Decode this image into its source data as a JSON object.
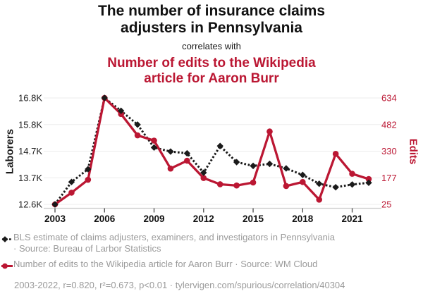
{
  "header": {
    "title_top": "The number of insurance claims adjusters in Pennsylvania",
    "connector": "correlates with",
    "title_bottom": "Number of edits to the Wikipedia article for Aaron Burr"
  },
  "colors": {
    "accent_red": "#bb1733",
    "series_black": "#1a1a1a",
    "legend_gray": "#9b9b9b",
    "gridline": "#ededed",
    "axis_line": "#cccccc",
    "tick_mark": "#555555"
  },
  "chart_data": {
    "type": "line",
    "title": "The number of insurance claims adjusters in Pennsylvania correlates with Number of edits to the Wikipedia article for Aaron Burr",
    "x": [
      2003,
      2004,
      2005,
      2006,
      2007,
      2008,
      2009,
      2010,
      2011,
      2012,
      2013,
      2014,
      2015,
      2016,
      2017,
      2018,
      2019,
      2020,
      2021,
      2022
    ],
    "x_range": [
      2003,
      2022
    ],
    "x_label_ticks": [
      2003,
      2006,
      2009,
      2012,
      2015,
      2018,
      2021
    ],
    "grid": "horizontal-only",
    "legend_position": "bottom-left",
    "left_axis": {
      "label": "Laborers",
      "range": [
        12600,
        16830
      ],
      "tick_labels": [
        "12.6K",
        "13.7K",
        "14.7K",
        "15.8K",
        "16.8K"
      ]
    },
    "right_axis": {
      "label": "Edits",
      "range": [
        25,
        634
      ],
      "tick_labels": [
        "25",
        "177",
        "330",
        "482",
        "634"
      ]
    },
    "series": [
      {
        "name": "BLS estimate of claims adjusters, examiners, and investigators in Pennsylvania",
        "source": "Bureau of Larbor Statistics",
        "axis": "left",
        "line_style": "dashed",
        "marker": "diamond",
        "values": [
          12600,
          13490,
          14000,
          16830,
          16320,
          15770,
          14860,
          14700,
          14630,
          13860,
          14920,
          14280,
          14130,
          14210,
          14030,
          13770,
          13420,
          13280,
          13390,
          13460
        ]
      },
      {
        "name": "Number of edits to the Wikipedia article for Aaron Burr",
        "source": "WM Cloud",
        "axis": "right",
        "line_style": "solid",
        "marker": "circle",
        "values": [
          25,
          92,
          166,
          634,
          542,
          420,
          390,
          230,
          275,
          176,
          140,
          133,
          150,
          442,
          130,
          153,
          52,
          314,
          200,
          170
        ]
      }
    ]
  },
  "legend": {
    "items": [
      {
        "icon": "diamond-dashed-line",
        "lines": [
          "BLS estimate of claims adjusters, examiners, and investigators in Pennsylvania",
          "· Source: Bureau of Larbor Statistics"
        ]
      },
      {
        "icon": "circle-solid-line",
        "lines": [
          "Number of edits to the Wikipedia article for Aaron Burr · Source: WM Cloud"
        ]
      }
    ]
  },
  "footer": {
    "stats_line": "2003-2022, r=0.820, r²=0.673, p<0.01 · tylervigen.com/spurious/correlation/40304"
  }
}
